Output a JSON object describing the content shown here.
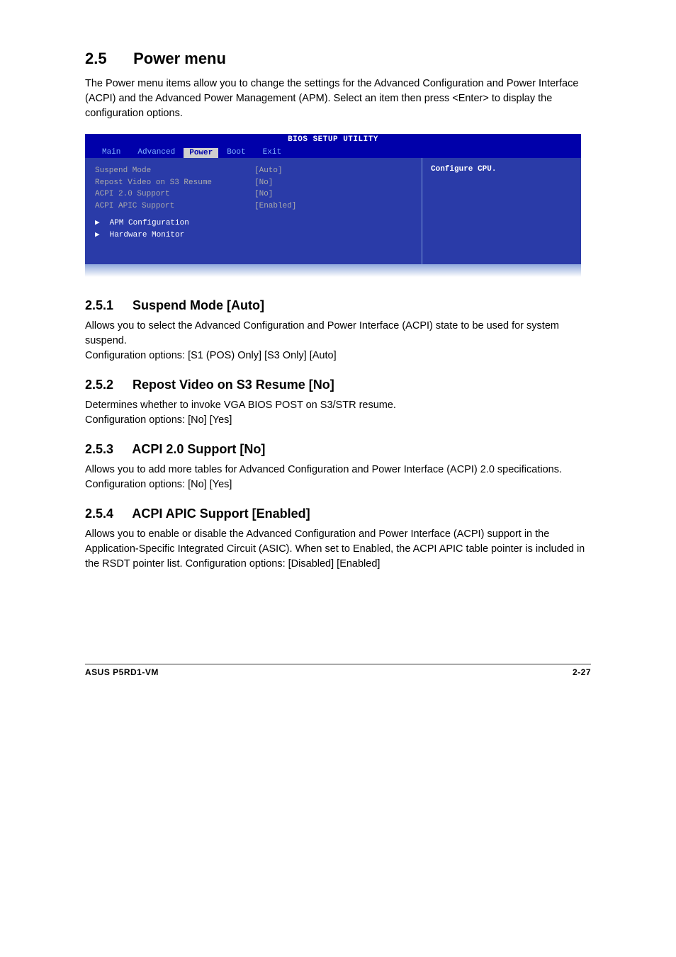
{
  "section": {
    "number": "2.5",
    "title": "Power menu",
    "intro": "The Power menu items allow you to change the settings for the Advanced Configuration and Power Interface (ACPI) and the Advanced Power Management (APM). Select an item then press <Enter> to display the configuration options."
  },
  "bios": {
    "title": "BIOS SETUP UTILITY",
    "tabs": [
      "Main",
      "Advanced",
      "Power",
      "Boot",
      "Exit"
    ],
    "active_tab": "Power",
    "rows": [
      {
        "key": "Suspend Mode",
        "val": "[Auto]"
      },
      {
        "key": "Repost Video on S3 Resume",
        "val": "[No]"
      },
      {
        "key": "ACPI 2.0 Support",
        "val": "[No]"
      },
      {
        "key": "ACPI APIC Support",
        "val": "[Enabled]"
      }
    ],
    "subs": [
      "APM Configuration",
      "Hardware Monitor"
    ],
    "help": "Configure CPU.",
    "colors": {
      "header_bg": "#0000aa",
      "panel_bg": "#2a3ba8",
      "dim_text": "#aaaaaa",
      "bright_text": "#ffffff",
      "tab_inactive": "#7fb2ff",
      "tab_active_bg": "#cfcfcf"
    }
  },
  "subsections": [
    {
      "num": "2.5.1",
      "title": "Suspend Mode [Auto]",
      "p1": "Allows you to select the Advanced Configuration and Power Interface (ACPI) state to be used for system suspend.",
      "p2": "Configuration options: [S1 (POS) Only] [S3 Only] [Auto]"
    },
    {
      "num": "2.5.2",
      "title": "Repost Video on S3 Resume [No]",
      "p1": "Determines whether to invoke VGA BIOS POST on S3/STR resume.",
      "p2": "Configuration options: [No] [Yes]"
    },
    {
      "num": "2.5.3",
      "title": "ACPI 2.0 Support [No]",
      "p1": "Allows you to add more tables for Advanced Configuration and Power Interface (ACPI) 2.0 specifications. Configuration options: [No] [Yes]",
      "p2": ""
    },
    {
      "num": "2.5.4",
      "title": "ACPI APIC Support [Enabled]",
      "p1": "Allows you to enable or disable the Advanced Configuration and Power Interface (ACPI) support in the Application-Specific Integrated Circuit (ASIC). When set to Enabled, the ACPI APIC table pointer is included in the RSDT pointer list. Configuration options: [Disabled] [Enabled]",
      "p2": ""
    }
  ],
  "footer": {
    "left": "ASUS P5RD1-VM",
    "right": "2-27"
  }
}
